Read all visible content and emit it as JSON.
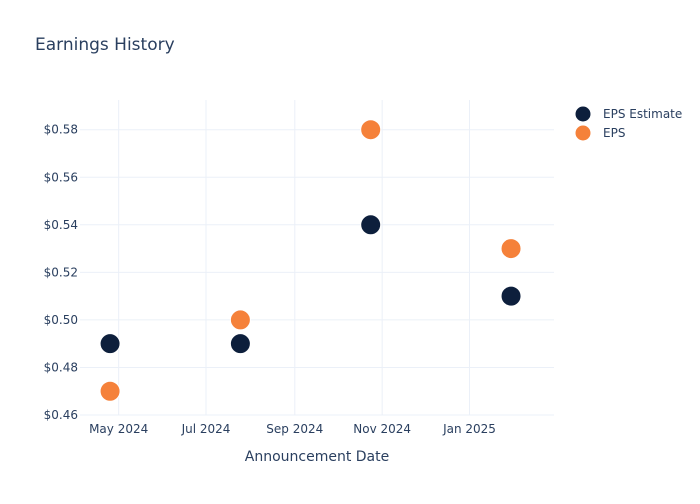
{
  "chart_data": {
    "type": "scatter",
    "title": "Earnings History",
    "xlabel": "Announcement Date",
    "ylabel": "",
    "x_ticks": [
      "May 2024",
      "Jul 2024",
      "Sep 2024",
      "Nov 2024",
      "Jan 2025"
    ],
    "x_tick_dates": [
      "2024-05-01",
      "2024-07-01",
      "2024-09-01",
      "2024-11-01",
      "2025-01-01"
    ],
    "xlim": [
      "2024-04-04",
      "2025-03-01"
    ],
    "y_ticks": [
      "$0.46",
      "$0.48",
      "$0.50",
      "$0.52",
      "$0.54",
      "$0.56",
      "$0.58"
    ],
    "y_tick_values": [
      0.46,
      0.48,
      0.5,
      0.52,
      0.54,
      0.56,
      0.58
    ],
    "ylim": [
      0.46,
      0.5925
    ],
    "grid": true,
    "legend_position": "top-right",
    "series": [
      {
        "name": "EPS Estimate",
        "color": "#0d1f3c",
        "points": [
          {
            "x": "2024-04-25",
            "y": 0.49
          },
          {
            "x": "2024-07-25",
            "y": 0.49
          },
          {
            "x": "2024-10-24",
            "y": 0.54
          },
          {
            "x": "2025-01-30",
            "y": 0.51
          }
        ]
      },
      {
        "name": "EPS",
        "color": "#f5813a",
        "points": [
          {
            "x": "2024-04-25",
            "y": 0.47
          },
          {
            "x": "2024-07-25",
            "y": 0.5
          },
          {
            "x": "2024-10-24",
            "y": 0.58
          },
          {
            "x": "2025-01-30",
            "y": 0.53
          }
        ]
      }
    ]
  }
}
